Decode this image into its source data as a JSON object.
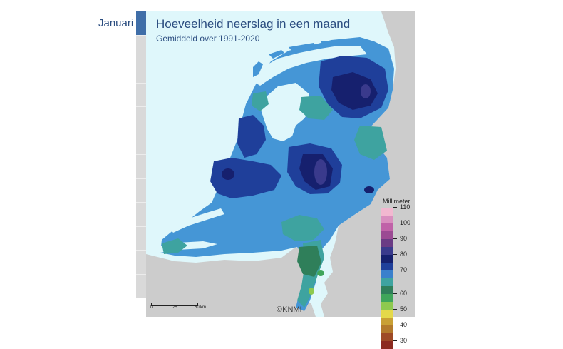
{
  "month_selector": {
    "label": "Januari",
    "selected_index": 0,
    "slots": 12,
    "active_color": "#3f6ea8"
  },
  "map": {
    "title": "Hoeveelheid neerslag in een maand",
    "subtitle": "Gemiddeld over 1991-2020",
    "sea_color": "#dff7fb",
    "neighbour_land_color": "#cccccc",
    "copyright": "©KNMI",
    "scalebar": {
      "labels": [
        "0",
        "25",
        "50"
      ],
      "unit": "km"
    },
    "legend": {
      "title": "Millimeter",
      "classes": [
        {
          "label": "110",
          "color": "#f2b8d0"
        },
        {
          "label": "",
          "color": "#d98fbf"
        },
        {
          "label": "100",
          "color": "#c062a8"
        },
        {
          "label": "",
          "color": "#9b4a93"
        },
        {
          "label": "90",
          "color": "#6a3b84"
        },
        {
          "label": "",
          "color": "#3a3a8c"
        },
        {
          "label": "80",
          "color": "#16206e"
        },
        {
          "label": "",
          "color": "#1f3f9a"
        },
        {
          "label": "70",
          "color": "#3a80cc"
        },
        {
          "label": "",
          "color": "#3ea3a0"
        },
        {
          "label": "",
          "color": "#2f7f5a"
        },
        {
          "label": "60",
          "color": "#3fa55a"
        },
        {
          "label": "",
          "color": "#8ec94e"
        },
        {
          "label": "50",
          "color": "#e4d94a"
        },
        {
          "label": "",
          "color": "#c9a035"
        },
        {
          "label": "40",
          "color": "#b37a2c"
        },
        {
          "label": "",
          "color": "#9e4a26"
        },
        {
          "label": "30",
          "color": "#8c2a1f"
        }
      ]
    }
  }
}
